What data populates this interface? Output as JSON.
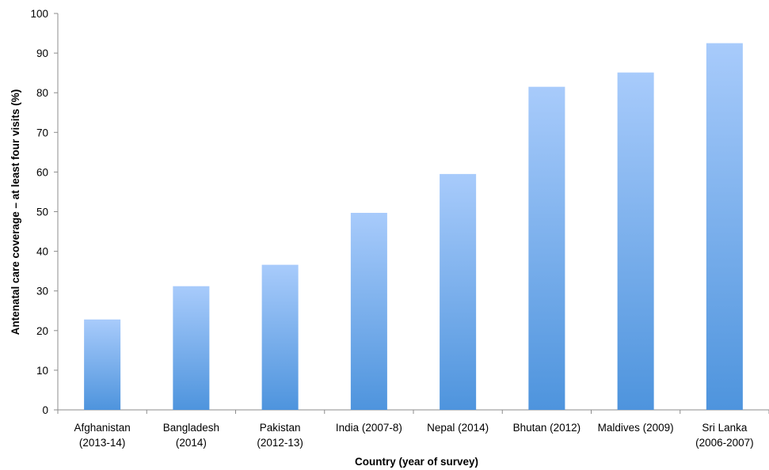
{
  "chart_data": {
    "type": "bar",
    "title": "",
    "xlabel": "Country (year of survey)",
    "ylabel": "Antenatal care coverage – at least four visits (%)",
    "ylim": [
      0,
      100
    ],
    "yticks": [
      0,
      10,
      20,
      30,
      40,
      50,
      60,
      70,
      80,
      90,
      100
    ],
    "categories": [
      [
        "Afghanistan",
        "(2013-14)"
      ],
      [
        "Bangladesh",
        "(2014)"
      ],
      [
        "Pakistan",
        "(2012-13)"
      ],
      [
        "India (2007-8)"
      ],
      [
        "Nepal (2014)"
      ],
      [
        "Bhutan (2012)"
      ],
      [
        "Maldives (2009)"
      ],
      [
        "Sri Lanka",
        "(2006-2007)"
      ]
    ],
    "values": [
      22.8,
      31.2,
      36.6,
      49.7,
      59.5,
      81.5,
      85.1,
      92.5
    ],
    "grid": false,
    "legend": "none",
    "colors": {
      "bar_top": "#a8cbfb",
      "bar_bottom": "#4e94dd",
      "axis": "#8c8c8c"
    }
  }
}
